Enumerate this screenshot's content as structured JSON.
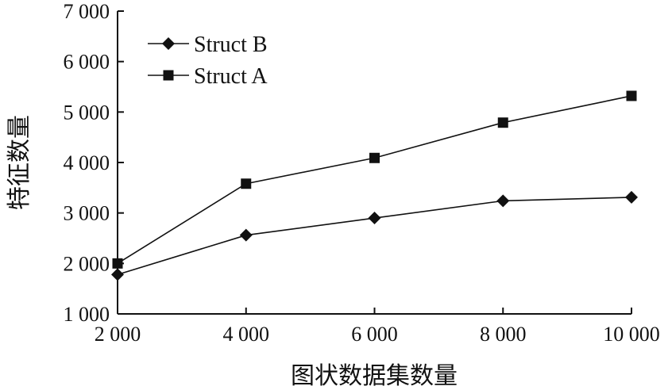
{
  "chart_data": {
    "type": "line",
    "title": "",
    "xlabel": "图状数据集数量",
    "ylabel": "特征数量",
    "x": [
      2000,
      4000,
      6000,
      8000,
      10000
    ],
    "x_tick_labels": [
      "2 000",
      "4 000",
      "6 000",
      "8 000",
      "10 000"
    ],
    "xlim": [
      2000,
      10000
    ],
    "ylim": [
      1000,
      7000
    ],
    "y_ticks": [
      1000,
      2000,
      3000,
      4000,
      5000,
      6000,
      7000
    ],
    "y_tick_labels": [
      "1 000",
      "2 000",
      "3 000",
      "4 000",
      "5 000",
      "6 000",
      "7 000"
    ],
    "grid": false,
    "legend_position": "top-left",
    "series": [
      {
        "name": "Struct B",
        "marker": "diamond",
        "color": "#111111",
        "values": [
          1780,
          2560,
          2900,
          3240,
          3310
        ]
      },
      {
        "name": "Struct A",
        "marker": "square",
        "color": "#111111",
        "values": [
          2000,
          3580,
          4090,
          4790,
          5320
        ]
      }
    ]
  }
}
